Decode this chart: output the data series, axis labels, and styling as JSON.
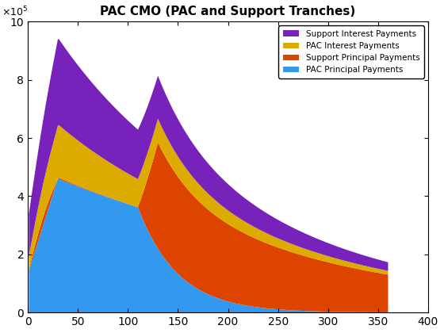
{
  "title": "PAC CMO (PAC and Support Tranches)",
  "xlim": [
    0,
    400
  ],
  "ylim": [
    0,
    1000000
  ],
  "ytick_labels": [
    "0",
    "2",
    "4",
    "6",
    "8",
    "10"
  ],
  "colors": {
    "pac_principal": "#3399EE",
    "support_principal": "#DD4400",
    "pac_interest": "#DDAA00",
    "support_interest": "#7722BB"
  }
}
